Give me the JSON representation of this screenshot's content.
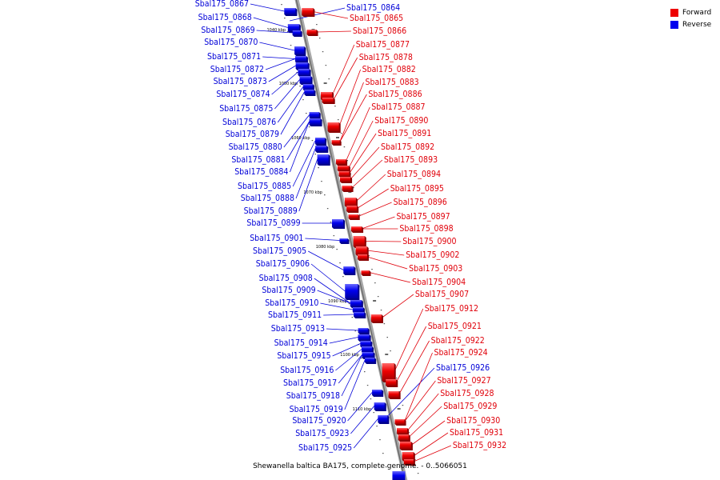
{
  "caption": "Shewanella baltica BA175, complete genome. - 0..5066051",
  "legend": [
    {
      "label": "Forward",
      "color": "#ee0000"
    },
    {
      "label": "Reverse",
      "color": "#0000ee"
    }
  ],
  "ticks": [
    "1040 kbp",
    "1050 kbp",
    "1060 kbp",
    "1070 kbp",
    "1080 kbp",
    "1090 kbp",
    "1100 kbp",
    "1110 kbp"
  ],
  "reverse_genes": [
    "Sbal175_0867",
    "Sbal175_0868",
    "Sbal175_0869",
    "Sbal175_0870",
    "Sbal175_0871",
    "Sbal175_0872",
    "Sbal175_0873",
    "Sbal175_0874",
    "Sbal175_0875",
    "Sbal175_0876",
    "Sbal175_0879",
    "Sbal175_0880",
    "Sbal175_0881",
    "Sbal175_0884",
    "Sbal175_0885",
    "Sbal175_0888",
    "Sbal175_0889",
    "Sbal175_0899",
    "Sbal175_0901",
    "Sbal175_0905",
    "Sbal175_0906",
    "Sbal175_0908",
    "Sbal175_0909",
    "Sbal175_0910",
    "Sbal175_0911",
    "Sbal175_0913",
    "Sbal175_0914",
    "Sbal175_0915",
    "Sbal175_0916",
    "Sbal175_0917",
    "Sbal175_0918",
    "Sbal175_0919",
    "Sbal175_0920",
    "Sbal175_0923",
    "Sbal175_0925",
    "Sbal175_0864",
    "Sbal175_0926"
  ],
  "forward_genes": [
    "Sbal175_0865",
    "Sbal175_0866",
    "Sbal175_0877",
    "Sbal175_0878",
    "Sbal175_0882",
    "Sbal175_0883",
    "Sbal175_0886",
    "Sbal175_0887",
    "Sbal175_0890",
    "Sbal175_0891",
    "Sbal175_0892",
    "Sbal175_0893",
    "Sbal175_0894",
    "Sbal175_0895",
    "Sbal175_0896",
    "Sbal175_0897",
    "Sbal175_0898",
    "Sbal175_0900",
    "Sbal175_0902",
    "Sbal175_0903",
    "Sbal175_0904",
    "Sbal175_0907",
    "Sbal175_0912",
    "Sbal175_0921",
    "Sbal175_0922",
    "Sbal175_0924",
    "Sbal175_0927",
    "Sbal175_0928",
    "Sbal175_0929",
    "Sbal175_0930",
    "Sbal175_0931",
    "Sbal175_0932"
  ]
}
